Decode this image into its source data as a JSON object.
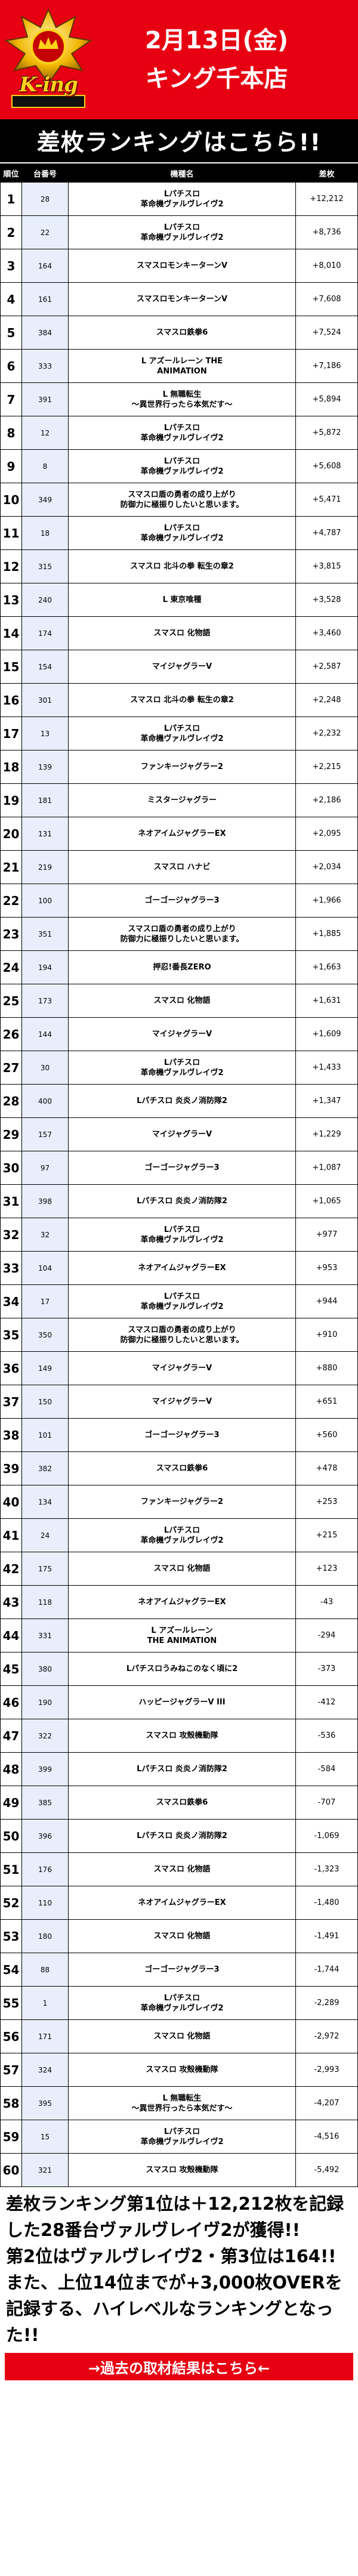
{
  "header": {
    "logo_text": "K-ing",
    "date": "2月13日(金)",
    "store": "キング千本店"
  },
  "title": "差枚ランキングはこちら!!",
  "columns": [
    "順位",
    "台番号",
    "機種名",
    "差枚"
  ],
  "rows": [
    {
      "rank": "1",
      "num": "28",
      "model": "Lパチスロ\n革命機ヴァルヴレイヴ2",
      "diff": "+12,212"
    },
    {
      "rank": "2",
      "num": "22",
      "model": "Lパチスロ\n革命機ヴァルヴレイヴ2",
      "diff": "+8,736"
    },
    {
      "rank": "3",
      "num": "164",
      "model": "スマスロモンキーターンV",
      "diff": "+8,010"
    },
    {
      "rank": "4",
      "num": "161",
      "model": "スマスロモンキーターンV",
      "diff": "+7,608"
    },
    {
      "rank": "5",
      "num": "384",
      "model": "スマスロ鉄拳6",
      "diff": "+7,524"
    },
    {
      "rank": "6",
      "num": "333",
      "model": "L アズールレーン THE\nANIMATION",
      "diff": "+7,186"
    },
    {
      "rank": "7",
      "num": "391",
      "model": "L 無職転生\n～異世界行ったら本気だす～",
      "diff": "+5,894"
    },
    {
      "rank": "8",
      "num": "12",
      "model": "Lパチスロ\n革命機ヴァルヴレイヴ2",
      "diff": "+5,872"
    },
    {
      "rank": "9",
      "num": "8",
      "model": "Lパチスロ\n革命機ヴァルヴレイヴ2",
      "diff": "+5,608"
    },
    {
      "rank": "10",
      "num": "349",
      "model": "スマスロ盾の勇者の成り上がり\n防御力に極振りしたいと思います。",
      "diff": "+5,471"
    },
    {
      "rank": "11",
      "num": "18",
      "model": "Lパチスロ\n革命機ヴァルヴレイヴ2",
      "diff": "+4,787"
    },
    {
      "rank": "12",
      "num": "315",
      "model": "スマスロ 北斗の拳 転生の章2",
      "diff": "+3,815"
    },
    {
      "rank": "13",
      "num": "240",
      "model": "L 東京喰種",
      "diff": "+3,528"
    },
    {
      "rank": "14",
      "num": "174",
      "model": "スマスロ 化物語",
      "diff": "+3,460"
    },
    {
      "rank": "15",
      "num": "154",
      "model": "マイジャグラーV",
      "diff": "+2,587"
    },
    {
      "rank": "16",
      "num": "301",
      "model": "スマスロ 北斗の拳 転生の章2",
      "diff": "+2,248"
    },
    {
      "rank": "17",
      "num": "13",
      "model": "Lパチスロ\n革命機ヴァルヴレイヴ2",
      "diff": "+2,232"
    },
    {
      "rank": "18",
      "num": "139",
      "model": "ファンキージャグラー2",
      "diff": "+2,215"
    },
    {
      "rank": "19",
      "num": "181",
      "model": "ミスタージャグラー",
      "diff": "+2,186"
    },
    {
      "rank": "20",
      "num": "131",
      "model": "ネオアイムジャグラーEX",
      "diff": "+2,095"
    },
    {
      "rank": "21",
      "num": "219",
      "model": "スマスロ ハナビ",
      "diff": "+2,034"
    },
    {
      "rank": "22",
      "num": "100",
      "model": "ゴーゴージャグラー3",
      "diff": "+1,966"
    },
    {
      "rank": "23",
      "num": "351",
      "model": "スマスロ盾の勇者の成り上がり\n防御力に極振りしたいと思います。",
      "diff": "+1,885"
    },
    {
      "rank": "24",
      "num": "194",
      "model": "押忍!番長ZERO",
      "diff": "+1,663"
    },
    {
      "rank": "25",
      "num": "173",
      "model": "スマスロ 化物語",
      "diff": "+1,631"
    },
    {
      "rank": "26",
      "num": "144",
      "model": "マイジャグラーV",
      "diff": "+1,609"
    },
    {
      "rank": "27",
      "num": "30",
      "model": "Lパチスロ\n革命機ヴァルヴレイヴ2",
      "diff": "+1,433"
    },
    {
      "rank": "28",
      "num": "400",
      "model": "Lパチスロ 炎炎ノ消防隊2",
      "diff": "+1,347"
    },
    {
      "rank": "29",
      "num": "157",
      "model": "マイジャグラーV",
      "diff": "+1,229"
    },
    {
      "rank": "30",
      "num": "97",
      "model": "ゴーゴージャグラー3",
      "diff": "+1,087"
    },
    {
      "rank": "31",
      "num": "398",
      "model": "Lパチスロ 炎炎ノ消防隊2",
      "diff": "+1,065"
    },
    {
      "rank": "32",
      "num": "32",
      "model": "Lパチスロ\n革命機ヴァルヴレイヴ2",
      "diff": "+977"
    },
    {
      "rank": "33",
      "num": "104",
      "model": "ネオアイムジャグラーEX",
      "diff": "+953"
    },
    {
      "rank": "34",
      "num": "17",
      "model": "Lパチスロ\n革命機ヴァルヴレイヴ2",
      "diff": "+944"
    },
    {
      "rank": "35",
      "num": "350",
      "model": "スマスロ盾の勇者の成り上がり\n防御力に極振りしたいと思います。",
      "diff": "+910"
    },
    {
      "rank": "36",
      "num": "149",
      "model": "マイジャグラーV",
      "diff": "+880"
    },
    {
      "rank": "37",
      "num": "150",
      "model": "マイジャグラーV",
      "diff": "+651"
    },
    {
      "rank": "38",
      "num": "101",
      "model": "ゴーゴージャグラー3",
      "diff": "+560"
    },
    {
      "rank": "39",
      "num": "382",
      "model": "スマスロ鉄拳6",
      "diff": "+478"
    },
    {
      "rank": "40",
      "num": "134",
      "model": "ファンキージャグラー2",
      "diff": "+253"
    },
    {
      "rank": "41",
      "num": "24",
      "model": "Lパチスロ\n革命機ヴァルヴレイヴ2",
      "diff": "+215"
    },
    {
      "rank": "42",
      "num": "175",
      "model": "スマスロ 化物語",
      "diff": "+123"
    },
    {
      "rank": "43",
      "num": "118",
      "model": "ネオアイムジャグラーEX",
      "diff": "-43"
    },
    {
      "rank": "44",
      "num": "331",
      "model": "L アズールレーン\nTHE ANIMATION",
      "diff": "-294"
    },
    {
      "rank": "45",
      "num": "380",
      "model": "Lパチスロうみねこのなく頃に2",
      "diff": "-373"
    },
    {
      "rank": "46",
      "num": "190",
      "model": "ハッピージャグラーV III",
      "diff": "-412"
    },
    {
      "rank": "47",
      "num": "322",
      "model": "スマスロ 攻殻機動隊",
      "diff": "-536"
    },
    {
      "rank": "48",
      "num": "399",
      "model": "Lパチスロ 炎炎ノ消防隊2",
      "diff": "-584"
    },
    {
      "rank": "49",
      "num": "385",
      "model": "スマスロ鉄拳6",
      "diff": "-707"
    },
    {
      "rank": "50",
      "num": "396",
      "model": "Lパチスロ 炎炎ノ消防隊2",
      "diff": "-1,069"
    },
    {
      "rank": "51",
      "num": "176",
      "model": "スマスロ 化物語",
      "diff": "-1,323"
    },
    {
      "rank": "52",
      "num": "110",
      "model": "ネオアイムジャグラーEX",
      "diff": "-1,480"
    },
    {
      "rank": "53",
      "num": "180",
      "model": "スマスロ 化物語",
      "diff": "-1,491"
    },
    {
      "rank": "54",
      "num": "88",
      "model": "ゴーゴージャグラー3",
      "diff": "-1,744"
    },
    {
      "rank": "55",
      "num": "1",
      "model": "Lパチスロ\n革命機ヴァルヴレイヴ2",
      "diff": "-2,289"
    },
    {
      "rank": "56",
      "num": "171",
      "model": "スマスロ 化物語",
      "diff": "-2,972"
    },
    {
      "rank": "57",
      "num": "324",
      "model": "スマスロ 攻殻機動隊",
      "diff": "-2,993"
    },
    {
      "rank": "58",
      "num": "395",
      "model": "L 無職転生\n～異世界行ったら本気だす～",
      "diff": "-4,207"
    },
    {
      "rank": "59",
      "num": "15",
      "model": "Lパチスロ\n革命機ヴァルヴレイヴ2",
      "diff": "-4,516"
    },
    {
      "rank": "60",
      "num": "321",
      "model": "スマスロ 攻殻機動隊",
      "diff": "-5,492"
    }
  ],
  "summary": {
    "line1": "差枚ランキング第1位は＋12,212枚を記録した28番台ヴァルヴレイヴ2が獲得!!",
    "line2": "第2位はヴァルヴレイヴ2・第3位は164!!",
    "line3": "また、上位14位までが+3,000枚OVERを記録する、ハイレベルなランキングとなった!!"
  },
  "footer_link": "→過去の取材結果はこちら←",
  "colors": {
    "brand_red": "#e60012",
    "header_black": "#000000",
    "num_cell_bg": "#e8eefb",
    "logo_gold": "#ffd21a"
  }
}
